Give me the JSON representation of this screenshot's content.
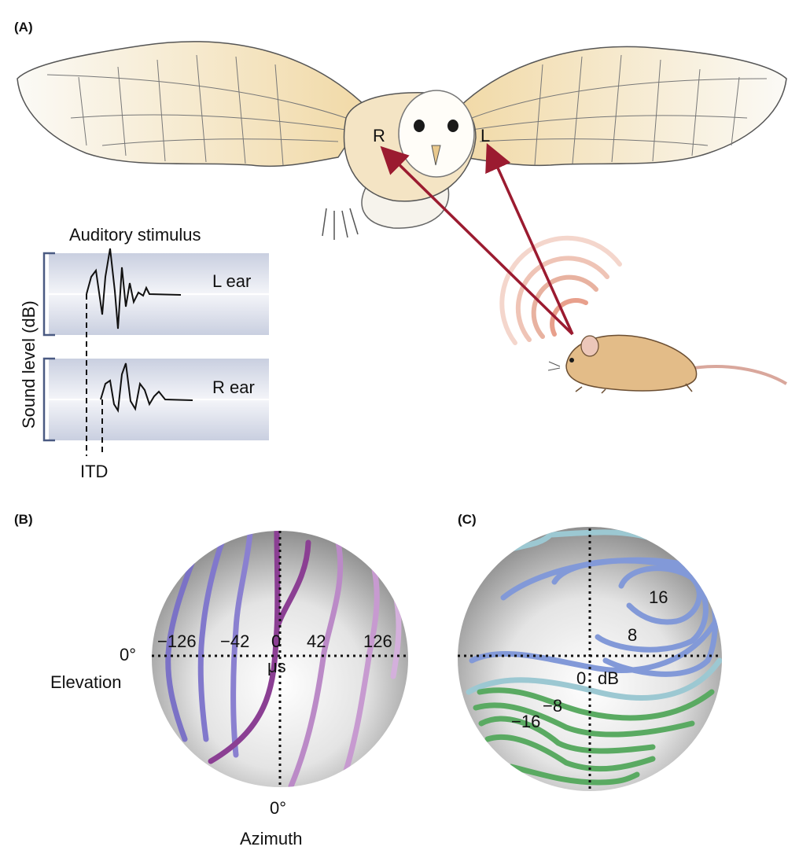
{
  "panel_a": {
    "label": "(A)",
    "owl_ear_right": "R",
    "owl_ear_left": "L",
    "stimulus_title": "Auditory stimulus",
    "y_axis_label": "Sound level (dB)",
    "left_ear_label": "L ear",
    "right_ear_label": "R ear",
    "itd_label": "ITD"
  },
  "panel_b": {
    "label": "(B)",
    "contour_values": [
      "−126",
      "−42",
      "0",
      "42",
      "126"
    ],
    "unit": "μs",
    "elevation_tick": "0°",
    "elevation_label": "Elevation",
    "azimuth_tick": "0°",
    "azimuth_label": "Azimuth"
  },
  "panel_c": {
    "label": "(C)",
    "contour_values": [
      "16",
      "8",
      "0",
      "dB",
      "−8",
      "−16"
    ]
  },
  "colors": {
    "arrow": "#9b1b30",
    "itd_line_neg": "#7b72c6",
    "itd_line_zero": "#8b3f93",
    "itd_line_pos": "#c79ad0",
    "ild_line_pos": "#8299d8",
    "ild_line_zero": "#9cc8d2",
    "ild_line_neg": "#5aaa62"
  }
}
